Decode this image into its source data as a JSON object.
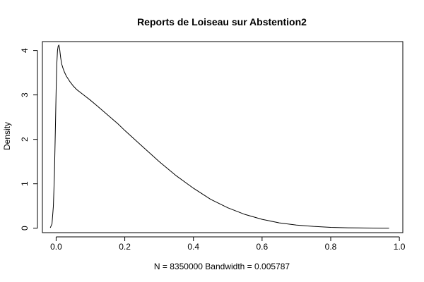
{
  "chart_data": {
    "type": "line",
    "title": "Reports de Loiseau sur Abstention2",
    "xlabel": "N = 8350000   Bandwidth = 0.005787",
    "ylabel": "Density",
    "xlim": [
      -0.04,
      1.01
    ],
    "ylim": [
      -0.1,
      4.2
    ],
    "x_ticks": [
      0,
      0.2,
      0.4,
      0.6,
      0.8,
      1
    ],
    "x_tick_labels": [
      "0.0",
      "0.2",
      "0.4",
      "0.6",
      "0.8",
      "1.0"
    ],
    "y_ticks": [
      0,
      1,
      2,
      3,
      4
    ],
    "y_tick_labels": [
      "0",
      "1",
      "2",
      "3",
      "4"
    ],
    "grid": false,
    "series": [
      {
        "line_color": "#000000",
        "x": [
          -0.017,
          -0.012,
          -0.008,
          -0.005,
          -0.002,
          0.0,
          0.002,
          0.004,
          0.006,
          0.008,
          0.01,
          0.013,
          0.016,
          0.02,
          0.025,
          0.03,
          0.04,
          0.05,
          0.06,
          0.08,
          0.1,
          0.12,
          0.15,
          0.18,
          0.2,
          0.25,
          0.3,
          0.35,
          0.4,
          0.45,
          0.5,
          0.55,
          0.6,
          0.65,
          0.7,
          0.75,
          0.8,
          0.85,
          0.9,
          0.95,
          0.97
        ],
        "y": [
          0.01,
          0.1,
          0.5,
          1.2,
          2.3,
          3.1,
          3.7,
          4.0,
          4.1,
          4.12,
          4.05,
          3.85,
          3.7,
          3.6,
          3.5,
          3.42,
          3.3,
          3.2,
          3.12,
          3.0,
          2.88,
          2.75,
          2.55,
          2.35,
          2.2,
          1.85,
          1.5,
          1.18,
          0.9,
          0.65,
          0.46,
          0.31,
          0.2,
          0.12,
          0.07,
          0.04,
          0.02,
          0.01,
          0.005,
          0.002,
          0.002
        ]
      }
    ]
  }
}
